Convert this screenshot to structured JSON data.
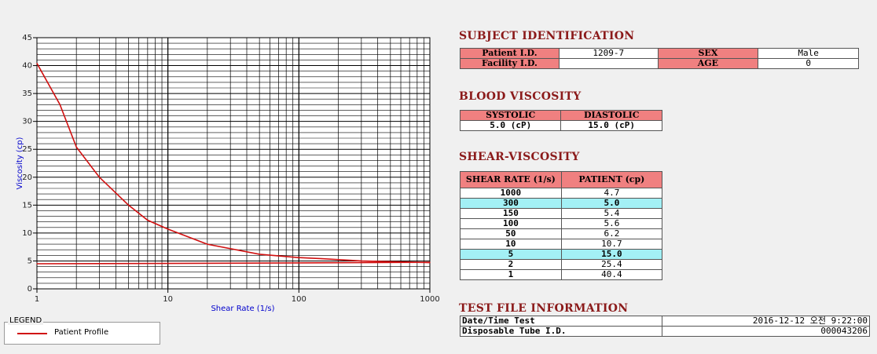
{
  "chart_data": {
    "type": "line",
    "xlabel": "Shear Rate (1/s)",
    "ylabel": "Viscosity (cp)",
    "x_scale": "log",
    "xlim": [
      1,
      1000
    ],
    "ylim": [
      0,
      45
    ],
    "grid": true,
    "x_ticks": [
      "1",
      "10",
      "100",
      "1000"
    ],
    "y_ticks": [
      "0",
      "5",
      "10",
      "15",
      "20",
      "25",
      "30",
      "35",
      "40",
      "45"
    ],
    "series": [
      {
        "name": "Patient Profile",
        "color": "#d01010",
        "points": [
          [
            1,
            40.4
          ],
          [
            1.5,
            33.0
          ],
          [
            2,
            25.4
          ],
          [
            3,
            20.0
          ],
          [
            5,
            15.0
          ],
          [
            7,
            12.3
          ],
          [
            10,
            10.7
          ],
          [
            20,
            8.0
          ],
          [
            50,
            6.2
          ],
          [
            100,
            5.6
          ],
          [
            150,
            5.4
          ],
          [
            300,
            5.0
          ],
          [
            1000,
            4.7
          ]
        ]
      },
      {
        "name": "",
        "color": "#d01010",
        "points": [
          [
            1,
            4.5
          ],
          [
            10,
            4.55
          ],
          [
            100,
            4.65
          ],
          [
            1000,
            4.75
          ]
        ]
      }
    ]
  },
  "legend": {
    "title": "LEGEND",
    "entries": [
      {
        "label": "Patient Profile",
        "color": "#d01010"
      }
    ]
  },
  "subject": {
    "title": "SUBJECT IDENTIFICATION",
    "patient_id_label": "Patient I.D.",
    "patient_id": "1209-7",
    "sex_label": "SEX",
    "sex": "Male",
    "facility_label": "Facility I.D.",
    "facility": "",
    "age_label": "AGE",
    "age": "0"
  },
  "blood": {
    "title": "BLOOD VISCOSITY",
    "systolic_label": "SYSTOLIC",
    "diastolic_label": "DIASTOLIC",
    "systolic": "5.0 (cP)",
    "diastolic": "15.0 (cP)"
  },
  "shear": {
    "title": "SHEAR-VISCOSITY",
    "col_rate": "SHEAR RATE (1/s)",
    "col_patient": "PATIENT (cp)",
    "rows": [
      {
        "rate": "1000",
        "value": "4.7",
        "highlight": false
      },
      {
        "rate": "300",
        "value": "5.0",
        "highlight": true
      },
      {
        "rate": "150",
        "value": "5.4",
        "highlight": false
      },
      {
        "rate": "100",
        "value": "5.6",
        "highlight": false
      },
      {
        "rate": "50",
        "value": "6.2",
        "highlight": false
      },
      {
        "rate": "10",
        "value": "10.7",
        "highlight": false
      },
      {
        "rate": "5",
        "value": "15.0",
        "highlight": true
      },
      {
        "rate": "2",
        "value": "25.4",
        "highlight": false
      },
      {
        "rate": "1",
        "value": "40.4",
        "highlight": false
      }
    ]
  },
  "testfile": {
    "title": "TEST FILE INFORMATION",
    "datetime_label": "Date/Time Test",
    "datetime": "2016-12-12  오전 9:22:00",
    "tube_label": "Disposable Tube I.D.",
    "tube": "000043206"
  }
}
